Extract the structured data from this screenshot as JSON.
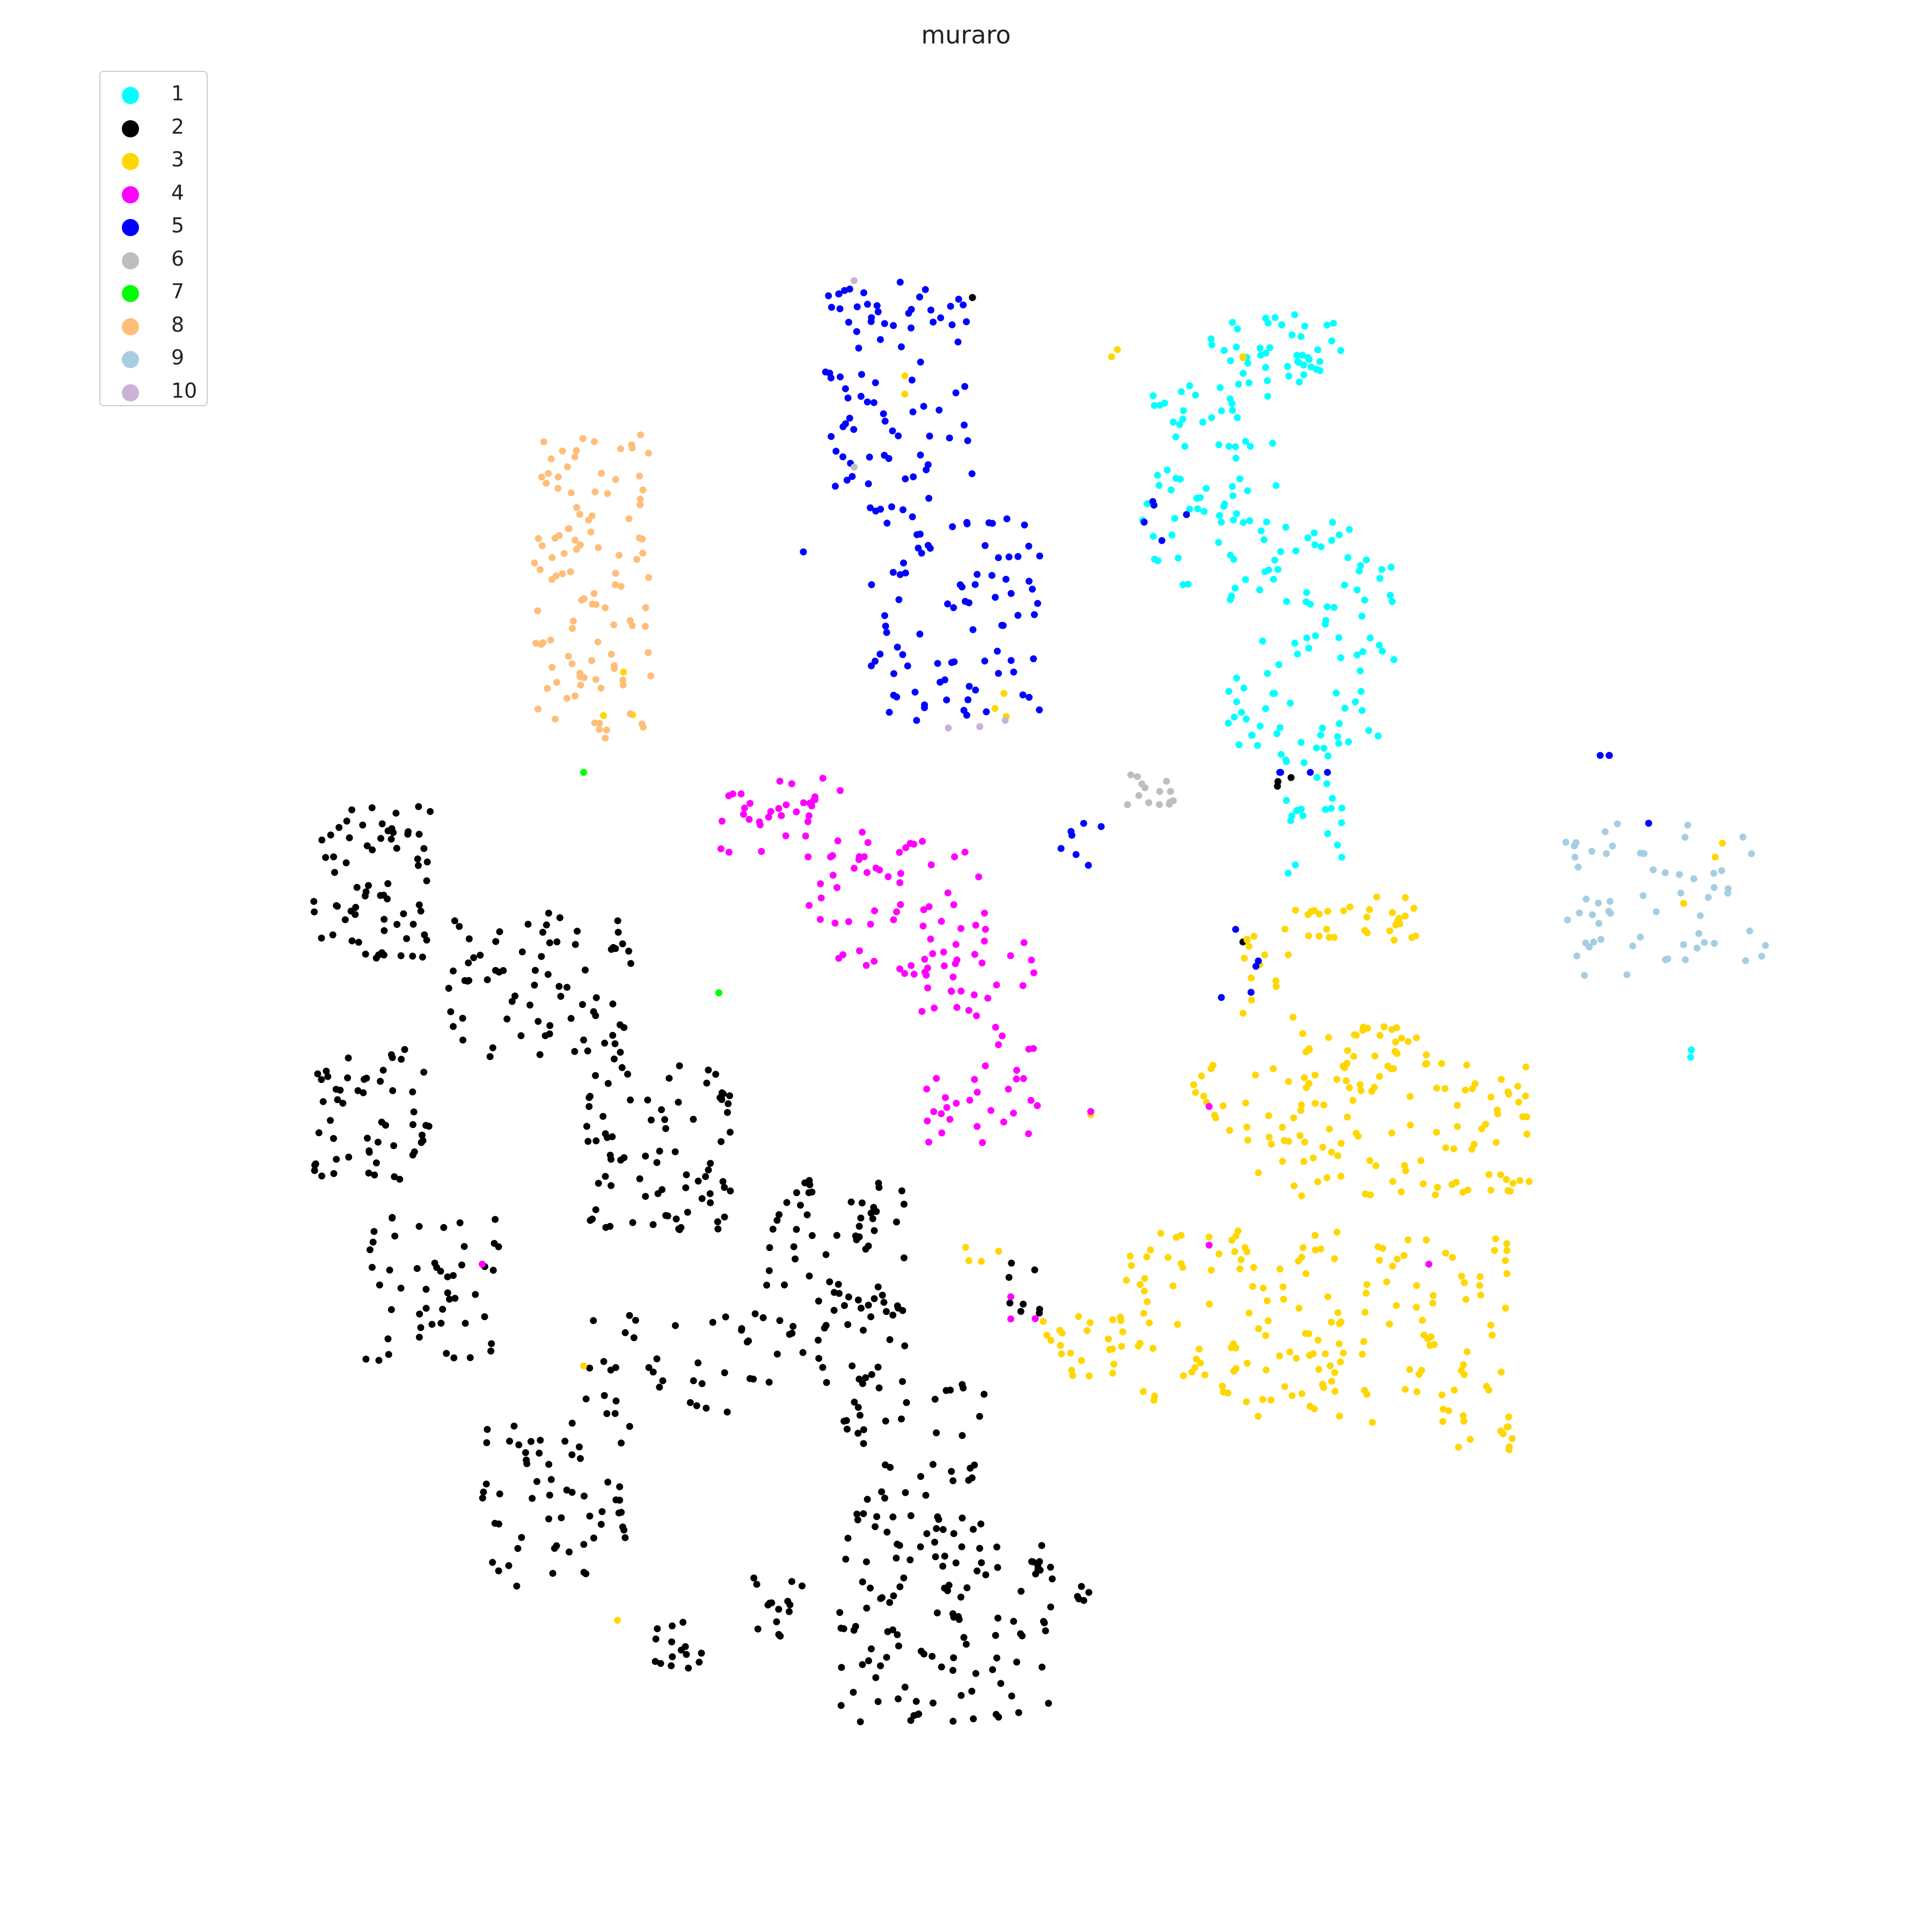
{
  "chart_data": {
    "type": "scatter",
    "title": "muraro",
    "xlabel": "",
    "ylabel": "",
    "axes_visible": false,
    "grid": false,
    "xlim": [
      0,
      1
    ],
    "ylim": [
      0,
      1
    ],
    "legend_position": "top-left",
    "series": [
      {
        "name": "1",
        "color": "#00ffff",
        "clusters": [
          {
            "x": [
              0.62,
              0.7
            ],
            "y": [
              0.86,
              0.9
            ],
            "n": 45
          },
          {
            "x": [
              0.58,
              0.66
            ],
            "y": [
              0.74,
              0.86
            ],
            "n": 70
          },
          {
            "x": [
              0.63,
              0.73
            ],
            "y": [
              0.64,
              0.78
            ],
            "n": 95
          },
          {
            "x": [
              0.66,
              0.7
            ],
            "y": [
              0.57,
              0.65
            ],
            "n": 25
          },
          {
            "x": [
              0.89,
              0.91
            ],
            "y": [
              0.46,
              0.48
            ],
            "n": 2
          }
        ]
      },
      {
        "name": "2",
        "color": "#000000",
        "clusters": [
          {
            "x": [
              0.09,
              0.16
            ],
            "y": [
              0.52,
              0.61
            ],
            "n": 70
          },
          {
            "x": [
              0.17,
              0.28
            ],
            "y": [
              0.46,
              0.55
            ],
            "n": 75
          },
          {
            "x": [
              0.09,
              0.16
            ],
            "y": [
              0.39,
              0.47
            ],
            "n": 55
          },
          {
            "x": [
              0.12,
              0.2
            ],
            "y": [
              0.28,
              0.37
            ],
            "n": 50
          },
          {
            "x": [
              0.19,
              0.28
            ],
            "y": [
              0.15,
              0.25
            ],
            "n": 60
          },
          {
            "x": [
              0.25,
              0.34
            ],
            "y": [
              0.36,
              0.46
            ],
            "n": 80
          },
          {
            "x": [
              0.25,
              0.35
            ],
            "y": [
              0.25,
              0.31
            ],
            "n": 35
          },
          {
            "x": [
              0.29,
              0.32
            ],
            "y": [
              0.1,
              0.13
            ],
            "n": 15
          },
          {
            "x": [
              0.35,
              0.44
            ],
            "y": [
              0.27,
              0.4
            ],
            "n": 90
          },
          {
            "x": [
              0.4,
              0.49
            ],
            "y": [
              0.18,
              0.27
            ],
            "n": 55
          },
          {
            "x": [
              0.4,
              0.53
            ],
            "y": [
              0.07,
              0.18
            ],
            "n": 110
          },
          {
            "x": [
              0.35,
              0.38
            ],
            "y": [
              0.12,
              0.16
            ],
            "n": 15
          },
          {
            "x": [
              0.5,
              0.52
            ],
            "y": [
              0.3,
              0.35
            ],
            "n": 8
          },
          {
            "x": [
              0.54,
              0.55
            ],
            "y": [
              0.14,
              0.15
            ],
            "n": 5
          },
          {
            "x": [
              0.48,
              0.48
            ],
            "y": [
              0.91,
              0.91
            ],
            "n": 3
          },
          {
            "x": [
              0.66,
              0.67
            ],
            "y": [
              0.62,
              0.63
            ],
            "n": 3
          },
          {
            "x": [
              0.64,
              0.64
            ],
            "y": [
              0.53,
              0.53
            ],
            "n": 1
          },
          {
            "x": [
              0.55,
              0.55
            ],
            "y": [
              0.43,
              0.43
            ],
            "n": 1
          }
        ]
      },
      {
        "name": "3",
        "color": "#ffd700",
        "clusters": [
          {
            "x": [
              0.64,
              0.67
            ],
            "y": [
              0.48,
              0.54
            ],
            "n": 15
          },
          {
            "x": [
              0.67,
              0.75
            ],
            "y": [
              0.53,
              0.56
            ],
            "n": 30
          },
          {
            "x": [
              0.67,
              0.75
            ],
            "y": [
              0.38,
              0.48
            ],
            "n": 80
          },
          {
            "x": [
              0.61,
              0.67
            ],
            "y": [
              0.39,
              0.46
            ],
            "n": 25
          },
          {
            "x": [
              0.75,
              0.81
            ],
            "y": [
              0.38,
              0.46
            ],
            "n": 45
          },
          {
            "x": [
              0.57,
              0.7
            ],
            "y": [
              0.25,
              0.36
            ],
            "n": 110
          },
          {
            "x": [
              0.52,
              0.57
            ],
            "y": [
              0.27,
              0.31
            ],
            "n": 25
          },
          {
            "x": [
              0.71,
              0.8
            ],
            "y": [
              0.23,
              0.36
            ],
            "n": 75
          },
          {
            "x": [
              0.47,
              0.5
            ],
            "y": [
              0.34,
              0.35
            ],
            "n": 4
          },
          {
            "x": [
              0.55,
              0.55
            ],
            "y": [
              0.42,
              0.43
            ],
            "n": 2
          },
          {
            "x": [
              0.25,
              0.25
            ],
            "y": [
              0.28,
              0.28
            ],
            "n": 1
          },
          {
            "x": [
              0.27,
              0.27
            ],
            "y": [
              0.13,
              0.13
            ],
            "n": 1
          },
          {
            "x": [
              0.56,
              0.57
            ],
            "y": [
              0.86,
              0.88
            ],
            "n": 2
          },
          {
            "x": [
              0.64,
              0.64
            ],
            "y": [
              0.87,
              0.88
            ],
            "n": 2
          },
          {
            "x": [
              0.44,
              0.44
            ],
            "y": [
              0.82,
              0.87
            ],
            "n": 2
          },
          {
            "x": [
              0.49,
              0.5
            ],
            "y": [
              0.66,
              0.68
            ],
            "n": 3
          },
          {
            "x": [
              0.83,
              0.94
            ],
            "y": [
              0.55,
              0.61
            ],
            "n": 3
          },
          {
            "x": [
              0.24,
              0.29
            ],
            "y": [
              0.66,
              0.69
            ],
            "n": 3
          }
        ]
      },
      {
        "name": "4",
        "color": "#ff00ff",
        "clusters": [
          {
            "x": [
              0.33,
              0.42
            ],
            "y": [
              0.58,
              0.63
            ],
            "n": 40
          },
          {
            "x": [
              0.38,
              0.49
            ],
            "y": [
              0.51,
              0.59
            ],
            "n": 55
          },
          {
            "x": [
              0.45,
              0.52
            ],
            "y": [
              0.41,
              0.53
            ],
            "n": 60
          },
          {
            "x": [
              0.19,
              0.19
            ],
            "y": [
              0.34,
              0.34
            ],
            "n": 1
          },
          {
            "x": [
              0.5,
              0.53
            ],
            "y": [
              0.3,
              0.36
            ],
            "n": 3
          },
          {
            "x": [
              0.55,
              0.55
            ],
            "y": [
              0.43,
              0.43
            ],
            "n": 1
          },
          {
            "x": [
              0.62,
              0.62
            ],
            "y": [
              0.32,
              0.46
            ],
            "n": 2
          },
          {
            "x": [
              0.75,
              0.75
            ],
            "y": [
              0.34,
              0.34
            ],
            "n": 1
          }
        ]
      },
      {
        "name": "5",
        "color": "#0000ff",
        "clusters": [
          {
            "x": [
              0.39,
              0.48
            ],
            "y": [
              0.78,
              0.92
            ],
            "n": 90
          },
          {
            "x": [
              0.42,
              0.52
            ],
            "y": [
              0.66,
              0.78
            ],
            "n": 85
          },
          {
            "x": [
              0.38,
              0.38
            ],
            "y": [
              0.76,
              0.76
            ],
            "n": 2
          },
          {
            "x": [
              0.53,
              0.56
            ],
            "y": [
              0.57,
              0.6
            ],
            "n": 7
          },
          {
            "x": [
              0.58,
              0.61
            ],
            "y": [
              0.76,
              0.79
            ],
            "n": 5
          },
          {
            "x": [
              0.66,
              0.69
            ],
            "y": [
              0.63,
              0.63
            ],
            "n": 3
          },
          {
            "x": [
              0.85,
              0.86
            ],
            "y": [
              0.64,
              0.64
            ],
            "n": 3
          },
          {
            "x": [
              0.62,
              0.65
            ],
            "y": [
              0.48,
              0.54
            ],
            "n": 5
          },
          {
            "x": [
              0.88,
              0.88
            ],
            "y": [
              0.6,
              0.6
            ],
            "n": 1
          },
          {
            "x": [
              0.69,
              0.69
            ],
            "y": [
              0.63,
              0.63
            ],
            "n": 1
          }
        ]
      },
      {
        "name": "6",
        "color": "#bebebe",
        "clusters": [
          {
            "x": [
              0.57,
              0.6
            ],
            "y": [
              0.61,
              0.63
            ],
            "n": 14
          },
          {
            "x": [
              0.41,
              0.41
            ],
            "y": [
              0.81,
              0.81
            ],
            "n": 1
          }
        ]
      },
      {
        "name": "7",
        "color": "#00ff00",
        "clusters": [
          {
            "x": [
              0.25,
              0.25
            ],
            "y": [
              0.63,
              0.63
            ],
            "n": 2
          },
          {
            "x": [
              0.33,
              0.33
            ],
            "y": [
              0.5,
              0.5
            ],
            "n": 2
          }
        ]
      },
      {
        "name": "8",
        "color": "#ffbe78",
        "clusters": [
          {
            "x": [
              0.22,
              0.29
            ],
            "y": [
              0.65,
              0.83
            ],
            "n": 110
          }
        ]
      },
      {
        "name": "9",
        "color": "#a6cee3",
        "clusters": [
          {
            "x": [
              0.83,
              0.95
            ],
            "y": [
              0.51,
              0.6
            ],
            "n": 60
          }
        ]
      },
      {
        "name": "10",
        "color": "#cab2d6",
        "clusters": [
          {
            "x": [
              0.41,
              0.41
            ],
            "y": [
              0.92,
              0.92
            ],
            "n": 1
          },
          {
            "x": [
              0.46,
              0.5
            ],
            "y": [
              0.65,
              0.67
            ],
            "n": 3
          }
        ]
      }
    ]
  }
}
